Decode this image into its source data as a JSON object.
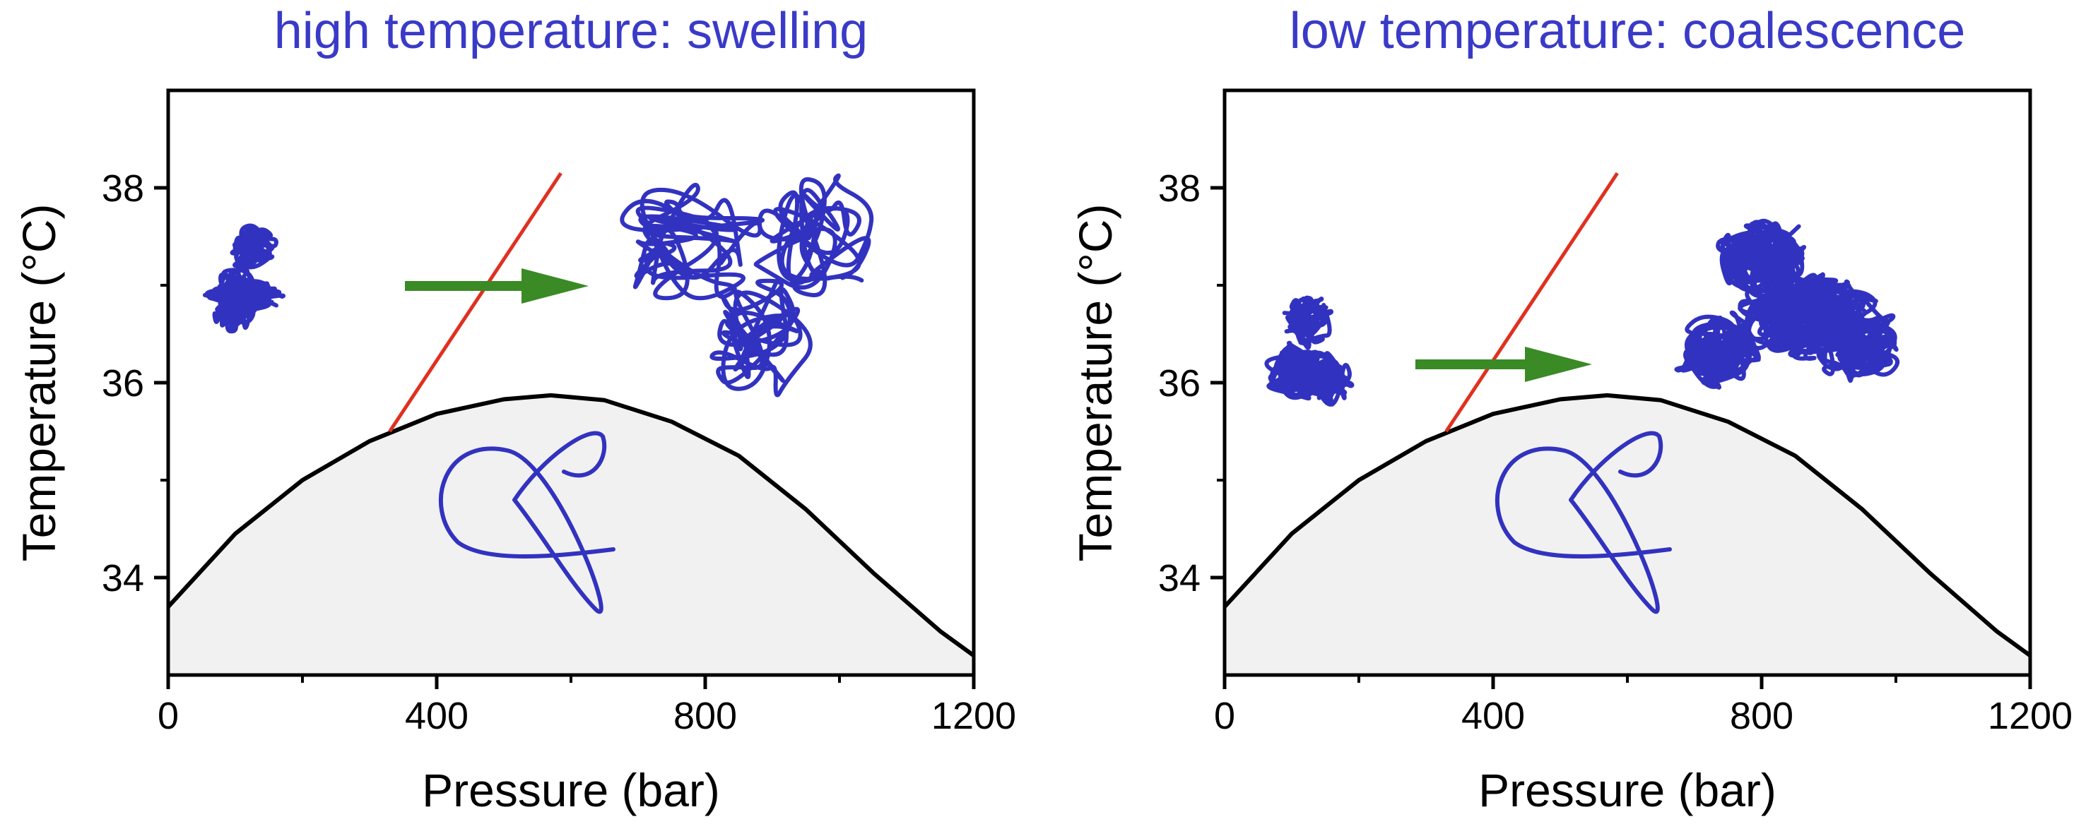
{
  "colors": {
    "coil": "#3232c0",
    "red_line": "#e03020",
    "arrow": "#3a8a25",
    "region_fill": "#f1f1f1",
    "title": "#3a3ac8"
  },
  "chart_data": [
    {
      "type": "line",
      "title": "high temperature: swelling",
      "xlabel": "Pressure (bar)",
      "ylabel": "Temperature (°C)",
      "xlim": [
        0,
        1200
      ],
      "ylim": [
        33,
        39
      ],
      "xticks": [
        0,
        400,
        800,
        1200
      ],
      "xtick_labels": [
        "0",
        "400",
        "800",
        "1200"
      ],
      "yticks": [
        34,
        36,
        38
      ],
      "ytick_labels": [
        "34",
        "36",
        "38"
      ],
      "grid": false,
      "series": [
        {
          "x": [
            0,
            100,
            200,
            300,
            400,
            500,
            570,
            650,
            750,
            850,
            950,
            1050,
            1150,
            1200
          ],
          "y": [
            33.7,
            34.45,
            35.0,
            35.4,
            35.68,
            35.83,
            35.87,
            35.82,
            35.6,
            35.25,
            34.7,
            34.05,
            33.45,
            33.2
          ]
        },
        {
          "x": [
            330,
            585
          ],
          "y": [
            35.5,
            38.15
          ]
        }
      ],
      "annotations": [
        "collapsed coil below curve",
        "small globule",
        "arrow",
        "swollen coils"
      ]
    },
    {
      "type": "line",
      "title": "low temperature: coalescence",
      "xlabel": "Pressure (bar)",
      "ylabel": "Temperature (°C)",
      "xlim": [
        0,
        1200
      ],
      "ylim": [
        33,
        39
      ],
      "xticks": [
        0,
        400,
        800,
        1200
      ],
      "xtick_labels": [
        "0",
        "400",
        "800",
        "1200"
      ],
      "yticks": [
        34,
        36,
        38
      ],
      "ytick_labels": [
        "34",
        "36",
        "38"
      ],
      "grid": false,
      "series": [
        {
          "x": [
            0,
            100,
            200,
            300,
            400,
            500,
            570,
            650,
            750,
            850,
            950,
            1050,
            1150,
            1200
          ],
          "y": [
            33.7,
            34.45,
            35.0,
            35.4,
            35.68,
            35.83,
            35.87,
            35.82,
            35.6,
            35.25,
            34.7,
            34.05,
            33.45,
            33.2
          ]
        },
        {
          "x": [
            330,
            585
          ],
          "y": [
            35.5,
            38.15
          ]
        }
      ],
      "annotations": [
        "collapsed coil below curve",
        "small globule",
        "arrow",
        "coalesced globule"
      ]
    }
  ]
}
